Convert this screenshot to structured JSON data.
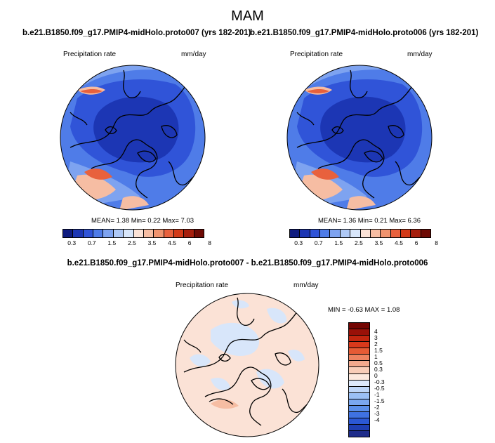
{
  "title": "MAM",
  "case_a_title": "b.e21.B1850.f09_g17.PMIP4-midHolo.proto007 (yrs 182-201)",
  "case_b_title": "b.e21.B1850.f09_g17.PMIP4-midHolo.proto006 (yrs 182-201)",
  "diff_title": "b.e21.B1850.f09_g17.PMIP4-midHolo.proto007 - b.e21.B1850.f09_g17.PMIP4-midHolo.proto006",
  "panels": [
    {
      "variable": "Precipitation rate",
      "units": "mm/day",
      "stats": "MEAN=   1.38  Min=   0.22  Max=   7.03"
    },
    {
      "variable": "Precipitation rate",
      "units": "mm/day",
      "stats": "MEAN=   1.36  Min=   0.21  Max=   6.36"
    },
    {
      "variable": "Precipitation rate",
      "units": "mm/day",
      "stats": "MIN =  -0.63 MAX =   1.08"
    }
  ],
  "colorbar_abs": {
    "colors": [
      "#0f1c80",
      "#1c36b4",
      "#3054d8",
      "#4f7ce8",
      "#7ea3f0",
      "#aec8f5",
      "#d8e6fa",
      "#fbe2d6",
      "#f6bda3",
      "#f0936e",
      "#e8613d",
      "#d23a18",
      "#a61e0c",
      "#6e0a04"
    ],
    "labels": [
      "0.3",
      "0.7",
      "1.5",
      "2.5",
      "3.5",
      "4.5",
      "6",
      "8"
    ]
  },
  "colorbar_diff": {
    "colors": [
      "#1e2c8a",
      "#1f3fb2",
      "#2b58d4",
      "#3f72e2",
      "#5b8fea",
      "#7aa7f0",
      "#9bc0f5",
      "#bed6f8",
      "#dde9fb",
      "#fce9de",
      "#f8cdb8",
      "#f3a98d",
      "#ee8360",
      "#e65b35",
      "#d9391b",
      "#c2260f",
      "#9a1108",
      "#730502"
    ],
    "labels": [
      "4",
      "3",
      "2",
      "1.5",
      "1",
      "0.5",
      "0.3",
      "0",
      "-0.3",
      "-0.5",
      "-1",
      "-1.5",
      "-2",
      "-3",
      "-4"
    ]
  },
  "map_colors": {
    "deep": "#1c36b4",
    "mid": "#3054d8",
    "light": "#4f7ce8",
    "pale": "#7ea3f0",
    "warm": "#f6bda3",
    "hot": "#e8613d",
    "diff_bg": "#fbe2d6",
    "diff_blue": "#d8e6fa",
    "coast": "#000000"
  }
}
